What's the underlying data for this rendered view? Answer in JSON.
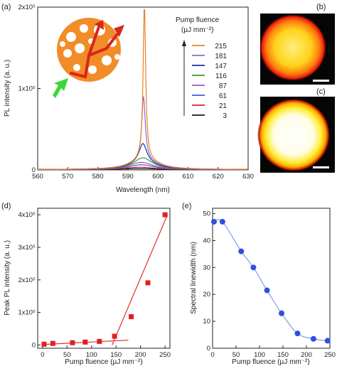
{
  "panels": {
    "a": "(a)",
    "b": "(b)",
    "c": "(c)",
    "d": "(d)",
    "e": "(e)"
  },
  "colors": {
    "scatter_red": "#e02020",
    "fit_line": "#e03030",
    "blue_marker": "#2f4fe0",
    "blue_line": "#6f86ea",
    "image_bg": "#050505"
  },
  "legend": {
    "title_line1": "Pump fluence",
    "title_line2": "(µJ mm⁻²)"
  },
  "chart_data": [
    {
      "id": "a",
      "type": "line",
      "xlabel": "Wavelength (nm)",
      "ylabel": "PL intensity (a. u.)",
      "xlim": [
        560,
        630
      ],
      "ylim": [
        0,
        200000
      ],
      "x_ticks": [
        "560",
        "570",
        "580",
        "590",
        "600",
        "610",
        "620",
        "630"
      ],
      "y_ticks": [
        "0",
        "1x10⁵",
        "2x10⁵"
      ],
      "series": [
        {
          "name": "215",
          "color": "#ef7f22",
          "peak": 191000,
          "center": 595.5,
          "width": 0.5,
          "base": 13000,
          "bwidth": 5.0
        },
        {
          "name": "181",
          "color": "#8a6fd1",
          "peak": 78000,
          "center": 595.2,
          "width": 0.7,
          "base": 12000,
          "bwidth": 5.2
        },
        {
          "name": "147",
          "color": "#1f2fa8",
          "peak": 24000,
          "center": 595.0,
          "width": 1.6,
          "base": 8000,
          "bwidth": 5.5
        },
        {
          "name": "116",
          "color": "#2e9e3a",
          "peak": 11000,
          "center": 595.0,
          "width": 3.5,
          "base": 3500,
          "bwidth": 6.0
        },
        {
          "name": "87",
          "color": "#b04fb0",
          "peak": 7000,
          "center": 594.5,
          "width": 4.5,
          "base": 2000,
          "bwidth": 6.0
        },
        {
          "name": "61",
          "color": "#3a5fe0",
          "peak": 5000,
          "center": 594.5,
          "width": 5.0,
          "base": 1000,
          "bwidth": 6.0
        },
        {
          "name": "21",
          "color": "#d42525",
          "peak": 2500,
          "center": 594.0,
          "width": 6.0,
          "base": 500,
          "bwidth": 6.0
        },
        {
          "name": "3",
          "color": "#1a1a1a",
          "peak": 1200,
          "center": 594.0,
          "width": 6.5,
          "base": 200,
          "bwidth": 6.0
        }
      ]
    },
    {
      "id": "d",
      "type": "scatter",
      "xlabel": "Pump fluence (µJ mm⁻²)",
      "ylabel": "Peak PL intensity (a. u.)",
      "xlim": [
        0,
        260
      ],
      "ylim": [
        0,
        420000
      ],
      "x_ticks": [
        "0",
        "50",
        "100",
        "150",
        "200",
        "250"
      ],
      "y_ticks": [
        "0",
        "1x10⁵",
        "2x10⁵",
        "3x10⁵",
        "4x10⁵"
      ],
      "points": [
        [
          3,
          2500
        ],
        [
          21,
          5000
        ],
        [
          61,
          7000
        ],
        [
          87,
          9000
        ],
        [
          116,
          11000
        ],
        [
          147,
          27000
        ],
        [
          181,
          87000
        ],
        [
          215,
          191000
        ],
        [
          250,
          400000
        ]
      ],
      "fit_low": [
        [
          0,
          1500
        ],
        [
          175,
          15000
        ]
      ],
      "fit_high": [
        [
          142,
          0
        ],
        [
          255,
          400000
        ]
      ]
    },
    {
      "id": "e",
      "type": "line",
      "xlabel": "Pump fluence (µJ mm⁻²)",
      "ylabel": "Spectral linewidth (nm)",
      "xlim": [
        0,
        250
      ],
      "ylim": [
        0,
        50
      ],
      "x_ticks": [
        "0",
        "50",
        "100",
        "150",
        "200",
        "250"
      ],
      "y_ticks": [
        "0",
        "10",
        "20",
        "30",
        "40",
        "50"
      ],
      "points": [
        [
          3,
          47
        ],
        [
          21,
          47
        ],
        [
          61,
          36
        ],
        [
          87,
          30
        ],
        [
          116,
          21.5
        ],
        [
          147,
          13
        ],
        [
          181,
          5.5
        ],
        [
          215,
          3.5
        ],
        [
          245,
          2.8
        ]
      ]
    }
  ]
}
